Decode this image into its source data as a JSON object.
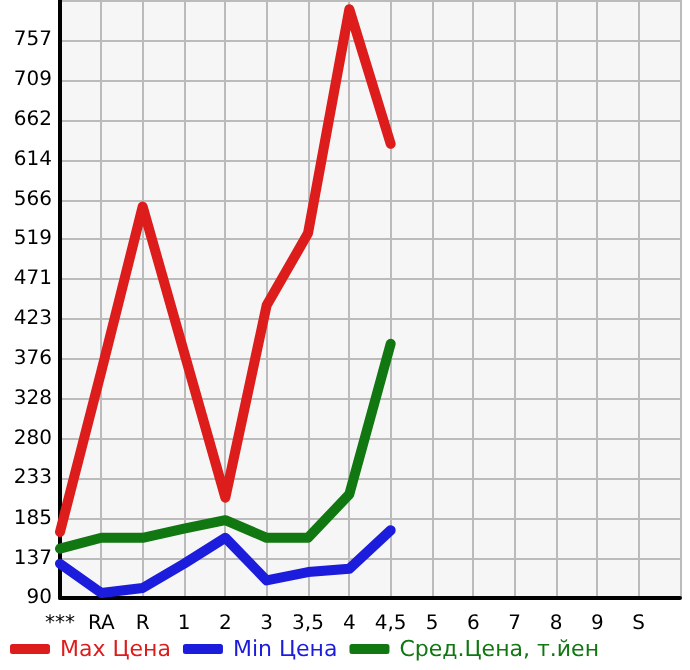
{
  "chart_data": {
    "type": "line",
    "categories": [
      "***",
      "RA",
      "R",
      "1",
      "2",
      "3",
      "3,5",
      "4",
      "4,5",
      "5",
      "6",
      "7",
      "8",
      "9",
      "S",
      null
    ],
    "series": [
      {
        "name": "Max Цена",
        "color": "#dd1c1c",
        "values": [
          169,
          361,
          558,
          384,
          210,
          440,
          526,
          794,
          633,
          null,
          null,
          null,
          null,
          null,
          null,
          null
        ]
      },
      {
        "name": "Min Цена",
        "color": "#1c1cdd",
        "values": [
          131,
          96,
          102,
          131,
          162,
          111,
          121,
          125,
          171,
          null,
          null,
          null,
          null,
          null,
          null,
          null
        ]
      },
      {
        "name": "Сред.Цена, т.йен",
        "color": "#117711",
        "values": [
          149,
          162,
          162,
          173,
          183,
          162,
          162,
          214,
          394,
          null,
          null,
          null,
          null,
          null,
          null,
          null
        ]
      }
    ],
    "ylim": [
      90,
      805
    ],
    "yticks": [
      90,
      137,
      185,
      233,
      280,
      328,
      376,
      423,
      471,
      519,
      566,
      614,
      662,
      709,
      757,
      {
        "value": 805,
        "label": null
      }
    ],
    "grid": true,
    "legend": "bottom",
    "marker": "none",
    "line_style": "solid"
  }
}
